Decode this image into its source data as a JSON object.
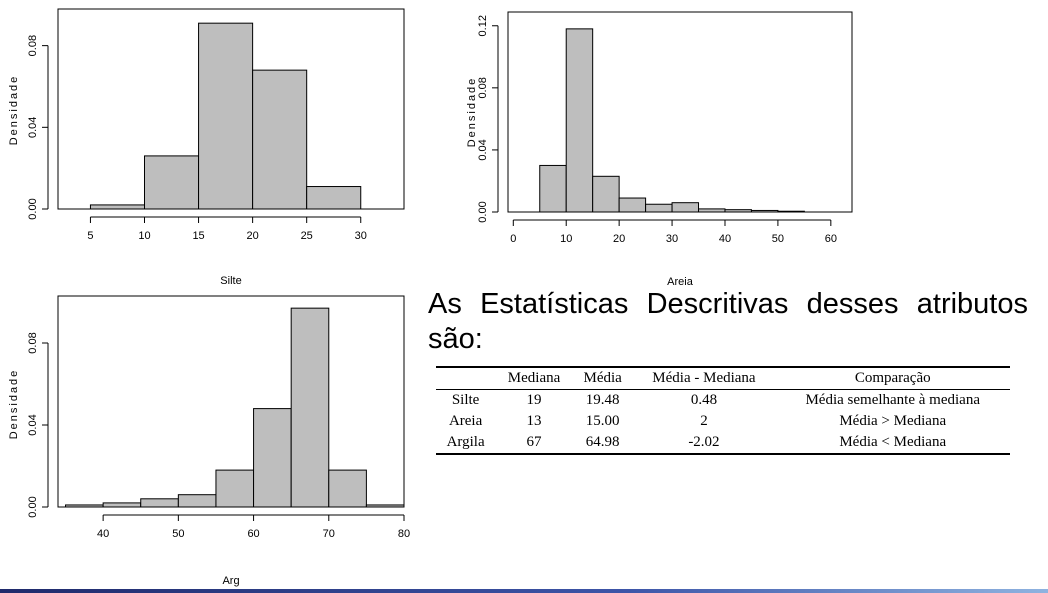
{
  "colors": {
    "bar_fill": "#bebebe",
    "bar_stroke": "#000000"
  },
  "chart_data": [
    {
      "type": "bar",
      "ylabel": "Densidade",
      "xlabel": "Silte",
      "bin_edges": [
        5,
        10,
        15,
        20,
        25,
        30
      ],
      "values": [
        0.002,
        0.026,
        0.091,
        0.068,
        0.011
      ],
      "xlim": [
        2,
        34
      ],
      "ylim": [
        0,
        0.095
      ],
      "xticks": [
        5,
        10,
        15,
        20,
        25,
        30
      ],
      "yticks": [
        0.0,
        0.04,
        0.08
      ],
      "ytick_labels": [
        "0.00",
        "0.04",
        "0.08"
      ]
    },
    {
      "type": "bar",
      "ylabel": "Densidade",
      "xlabel": "Areia",
      "bin_edges": [
        5,
        10,
        15,
        20,
        25,
        30,
        35,
        40,
        45,
        50,
        55
      ],
      "values": [
        0.03,
        0.118,
        0.023,
        0.009,
        0.005,
        0.006,
        0.002,
        0.0015,
        0.001,
        0.0005
      ],
      "xlim": [
        -1,
        64
      ],
      "ylim": [
        0,
        0.125
      ],
      "xticks": [
        0,
        10,
        20,
        30,
        40,
        50,
        60
      ],
      "yticks": [
        0.0,
        0.04,
        0.08,
        0.12
      ],
      "ytick_labels": [
        "0.00",
        "0.04",
        "0.08",
        "0.12"
      ]
    },
    {
      "type": "bar",
      "ylabel": "Densidade",
      "xlabel": "Arg",
      "bin_edges": [
        35,
        40,
        45,
        50,
        55,
        60,
        65,
        70,
        75,
        80
      ],
      "values": [
        0.001,
        0.002,
        0.004,
        0.006,
        0.018,
        0.048,
        0.097,
        0.018,
        0.001
      ],
      "xlim": [
        34,
        80
      ],
      "ylim": [
        0,
        0.1
      ],
      "xticks": [
        40,
        50,
        60,
        70,
        80
      ],
      "yticks": [
        0.0,
        0.04,
        0.08
      ],
      "ytick_labels": [
        "0.00",
        "0.04",
        "0.08"
      ]
    }
  ],
  "heading": "As Estatísticas Descritivas desses atributos são:",
  "table": {
    "headers": [
      "",
      "Mediana",
      "Média",
      "Média - Mediana",
      "Comparação"
    ],
    "rows": [
      [
        "Silte",
        "19",
        "19.48",
        "0.48",
        "Média semelhante à mediana"
      ],
      [
        "Areia",
        "13",
        "15.00",
        "2",
        "Média > Mediana"
      ],
      [
        "Argila",
        "67",
        "64.98",
        "-2.02",
        "Média < Mediana"
      ]
    ]
  }
}
